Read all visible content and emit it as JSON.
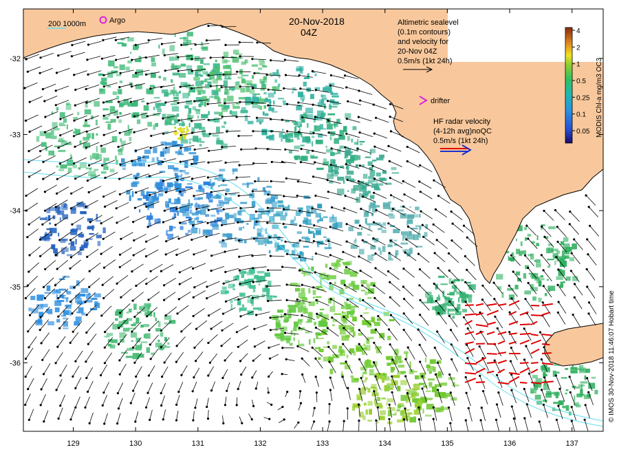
{
  "header": {
    "date": "20-Nov-2018",
    "time": "04Z"
  },
  "isobath_legend": {
    "label": "200  1000m"
  },
  "argo_legend": {
    "label": "Argo"
  },
  "altimetry_legend": {
    "lines": [
      "Altimetric sealevel",
      "(0.1m contours)",
      "and velocity for",
      "20-Nov 04Z",
      "0.5m/s (1kt 24h)"
    ]
  },
  "drifter_legend": {
    "label": "drifter"
  },
  "radar_legend": {
    "lines": [
      "HF radar velocity",
      "(4-12h avg)noQC",
      "0.5m/s (1kt 24h)"
    ]
  },
  "colorbar": {
    "title": "MODIS Chl-a mg/m3 OC3",
    "ticks": [
      "4",
      "2",
      "1",
      "0.5",
      "0.25",
      "0.1",
      "0.05"
    ]
  },
  "credit": "© IMOS 30-Nov-2018 11:46:07 Hobart time",
  "axes": {
    "x_ticks": [
      "129",
      "130",
      "131",
      "132",
      "133",
      "134",
      "135",
      "136",
      "137"
    ],
    "y_ticks": [
      "-32",
      "-33",
      "-34",
      "-35",
      "-36"
    ],
    "lon_range": [
      128.2,
      137.5
    ],
    "lat_range": [
      -36.9,
      -31.35
    ]
  },
  "colors": {
    "land": "#f8c89c",
    "ocean": "#ffffff",
    "argo": "#e020e0",
    "drifter": "#e020e0",
    "radar_arrow": "#e00000",
    "isobath": "#60e0f0"
  }
}
